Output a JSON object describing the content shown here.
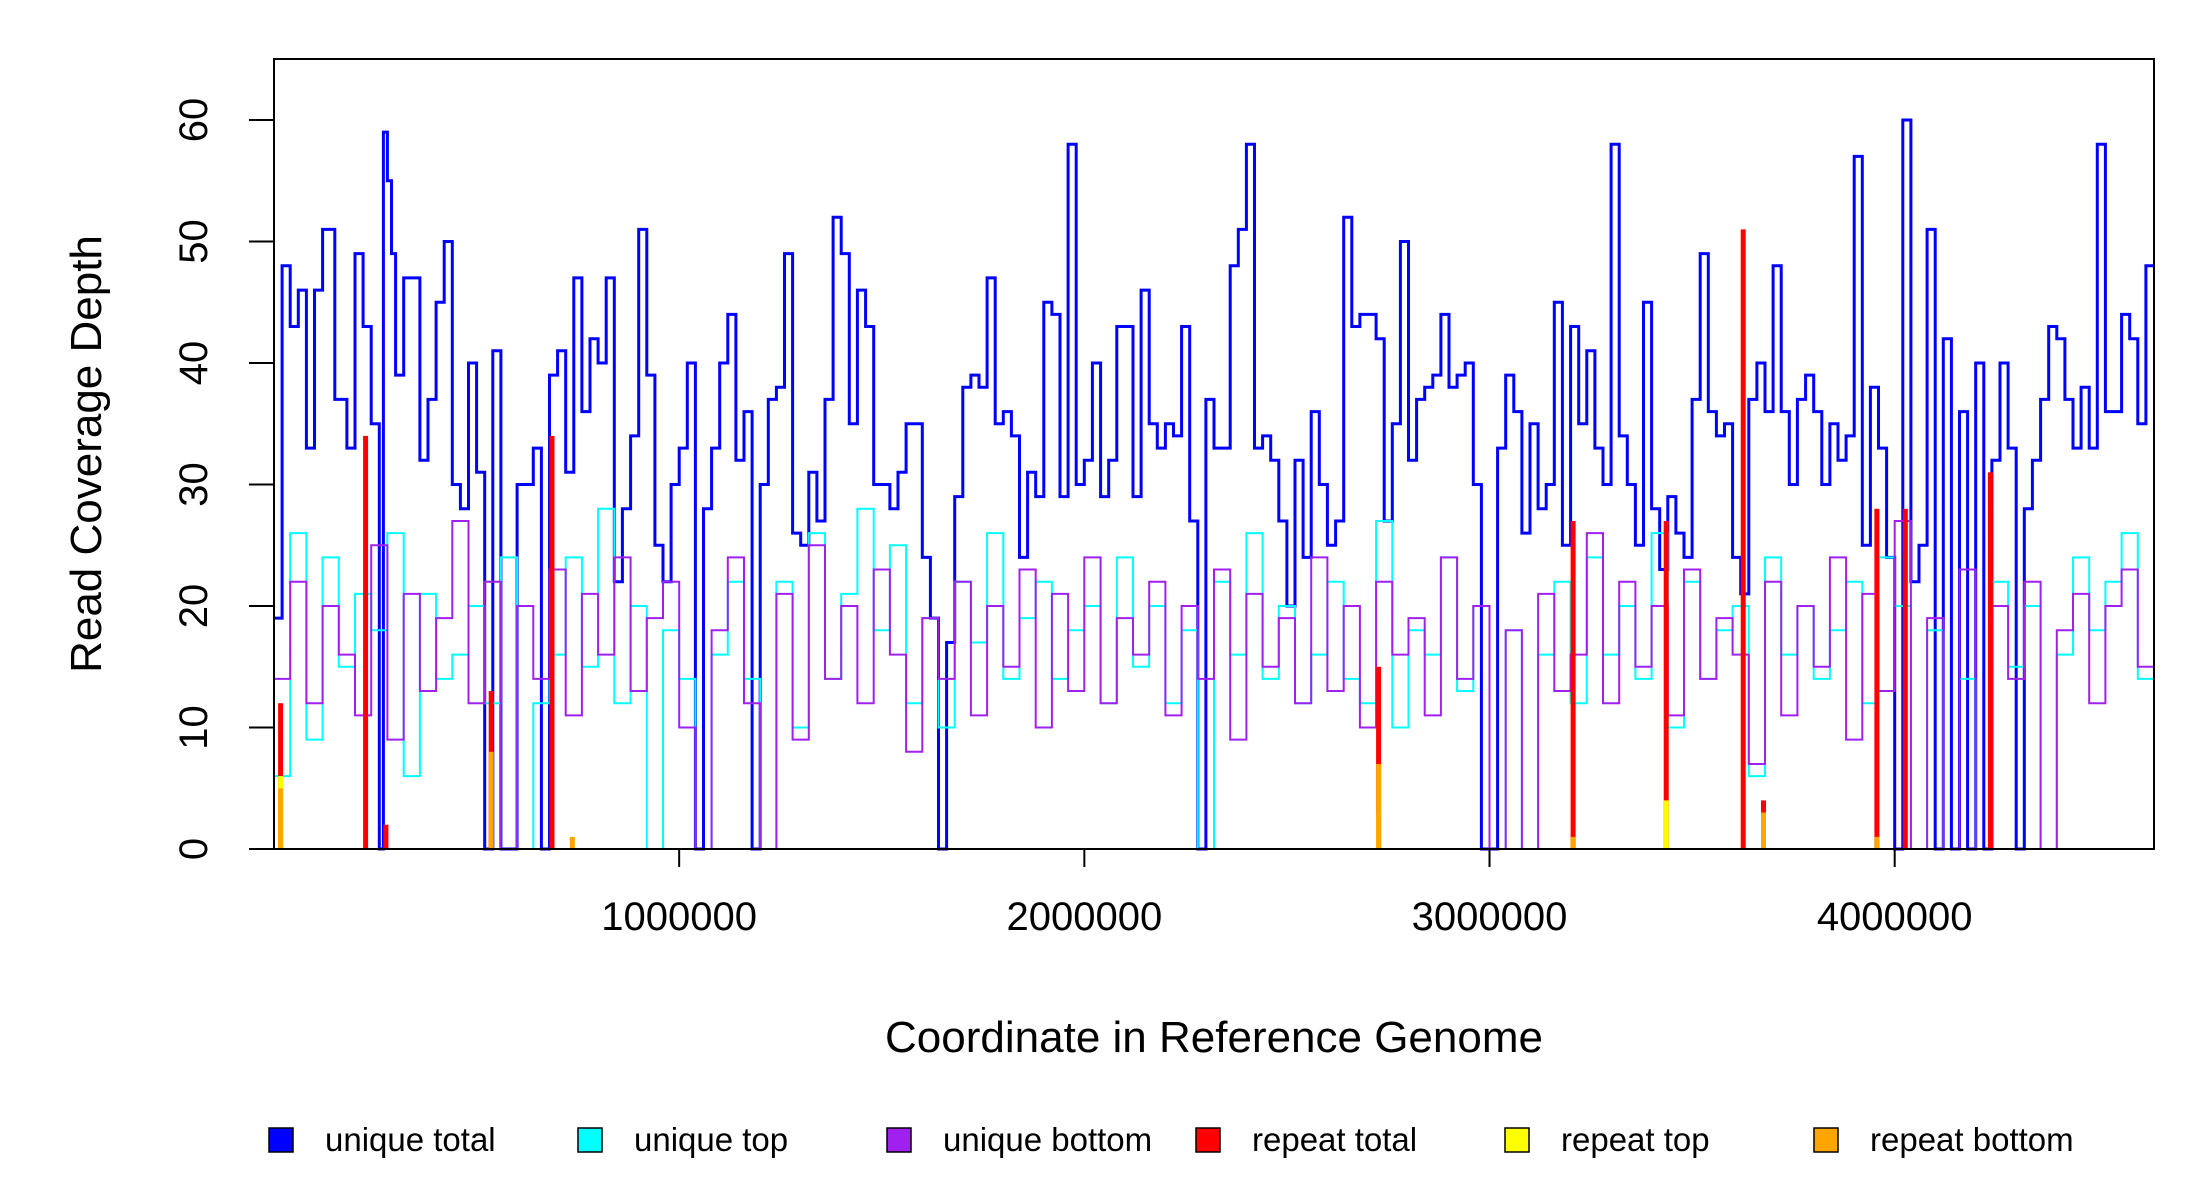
{
  "chart_data": {
    "type": "line",
    "title": "",
    "xlabel": "Coordinate in Reference Genome",
    "ylabel": "Read Coverage Depth",
    "xlim": [
      0,
      4640000
    ],
    "ylim": [
      0,
      65
    ],
    "x_ticks": [
      1000000,
      2000000,
      3000000,
      4000000
    ],
    "x_tick_labels": [
      "1000000",
      "2000000",
      "3000000",
      "4000000"
    ],
    "y_ticks": [
      0,
      10,
      20,
      30,
      40,
      50,
      60
    ],
    "y_tick_labels": [
      "0",
      "10",
      "20",
      "30",
      "40",
      "50",
      "60"
    ],
    "grid": false,
    "legend_position": "bottom",
    "bin_width": 10000,
    "series": [
      {
        "name": "unique total",
        "color": "#0000ff",
        "x": [
          0,
          20000,
          40000,
          60000,
          80000,
          100000,
          120000,
          150000,
          180000,
          200000,
          220000,
          240000,
          260000,
          270000,
          280000,
          290000,
          300000,
          320000,
          360000,
          380000,
          400000,
          420000,
          440000,
          460000,
          480000,
          500000,
          520000,
          540000,
          560000,
          600000,
          640000,
          660000,
          680000,
          700000,
          720000,
          740000,
          760000,
          780000,
          800000,
          820000,
          840000,
          860000,
          880000,
          900000,
          920000,
          940000,
          960000,
          980000,
          1000000,
          1020000,
          1040000,
          1060000,
          1080000,
          1100000,
          1120000,
          1140000,
          1160000,
          1180000,
          1200000,
          1220000,
          1240000,
          1260000,
          1280000,
          1300000,
          1320000,
          1340000,
          1360000,
          1380000,
          1400000,
          1420000,
          1440000,
          1460000,
          1480000,
          1500000,
          1520000,
          1540000,
          1560000,
          1580000,
          1600000,
          1620000,
          1640000,
          1660000,
          1680000,
          1700000,
          1720000,
          1740000,
          1760000,
          1780000,
          1800000,
          1820000,
          1840000,
          1860000,
          1880000,
          1900000,
          1920000,
          1940000,
          1960000,
          1980000,
          2000000,
          2020000,
          2040000,
          2060000,
          2080000,
          2100000,
          2120000,
          2140000,
          2160000,
          2180000,
          2200000,
          2220000,
          2240000,
          2260000,
          2280000,
          2300000,
          2320000,
          2340000,
          2360000,
          2380000,
          2400000,
          2420000,
          2440000,
          2460000,
          2480000,
          2500000,
          2520000,
          2540000,
          2560000,
          2580000,
          2600000,
          2620000,
          2640000,
          2660000,
          2680000,
          2700000,
          2720000,
          2740000,
          2760000,
          2780000,
          2800000,
          2820000,
          2840000,
          2860000,
          2880000,
          2900000,
          2920000,
          2940000,
          2960000,
          2980000,
          3000000,
          3020000,
          3040000,
          3060000,
          3080000,
          3100000,
          3120000,
          3140000,
          3160000,
          3180000,
          3200000,
          3220000,
          3240000,
          3260000,
          3280000,
          3300000,
          3320000,
          3340000,
          3360000,
          3380000,
          3400000,
          3420000,
          3440000,
          3460000,
          3480000,
          3500000,
          3520000,
          3540000,
          3560000,
          3580000,
          3600000,
          3620000,
          3640000,
          3660000,
          3680000,
          3700000,
          3720000,
          3740000,
          3760000,
          3780000,
          3800000,
          3820000,
          3840000,
          3860000,
          3880000,
          3900000,
          3920000,
          3940000,
          3960000,
          3980000,
          4000000,
          4020000,
          4040000,
          4060000,
          4080000,
          4100000,
          4120000,
          4140000,
          4160000,
          4180000,
          4200000,
          4220000,
          4240000,
          4260000,
          4280000,
          4300000,
          4320000,
          4340000,
          4360000,
          4380000,
          4400000,
          4420000,
          4440000,
          4460000,
          4480000,
          4500000,
          4520000,
          4540000,
          4560000,
          4580000,
          4600000,
          4620000
        ],
        "values": [
          19,
          48,
          43,
          46,
          33,
          46,
          51,
          37,
          33,
          49,
          43,
          35,
          0,
          59,
          55,
          49,
          39,
          47,
          32,
          37,
          45,
          50,
          30,
          28,
          40,
          31,
          0,
          41,
          0,
          30,
          33,
          0,
          39,
          41,
          31,
          47,
          36,
          42,
          40,
          47,
          22,
          28,
          34,
          51,
          39,
          25,
          22,
          30,
          33,
          40,
          0,
          28,
          33,
          40,
          44,
          32,
          36,
          0,
          30,
          37,
          38,
          49,
          26,
          25,
          31,
          27,
          37,
          52,
          49,
          35,
          46,
          43,
          30,
          30,
          28,
          31,
          35,
          35,
          24,
          19,
          0,
          17,
          29,
          38,
          39,
          38,
          47,
          35,
          36,
          34,
          24,
          31,
          29,
          45,
          44,
          29,
          58,
          30,
          32,
          40,
          29,
          32,
          43,
          43,
          29,
          46,
          35,
          33,
          35,
          34,
          43,
          27,
          0,
          37,
          33,
          33,
          48,
          51,
          58,
          33,
          34,
          32,
          27,
          20,
          32,
          24,
          36,
          30,
          25,
          27,
          52,
          43,
          44,
          44,
          42,
          27,
          35,
          50,
          32,
          37,
          38,
          39,
          44,
          38,
          39,
          40,
          30,
          0,
          0,
          33,
          39,
          36,
          26,
          35,
          28,
          30,
          45,
          25,
          43,
          35,
          41,
          33,
          30,
          58,
          34,
          30,
          25,
          45,
          28,
          23,
          29,
          26,
          24,
          37,
          49,
          36,
          34,
          35,
          24,
          21,
          37,
          40,
          36,
          48,
          36,
          30,
          37,
          39,
          36,
          30,
          35,
          32,
          34,
          57,
          25,
          38,
          33,
          24,
          0,
          60,
          22,
          25,
          51,
          0,
          42,
          0,
          36,
          0,
          40,
          0,
          32,
          40,
          33,
          0,
          28,
          32,
          37,
          43,
          42,
          37,
          33,
          38,
          33,
          58,
          36,
          36,
          44,
          42,
          35,
          48
        ]
      },
      {
        "name": "unique top",
        "color": "#00ffff",
        "x": [
          0,
          40000,
          80000,
          120000,
          160000,
          200000,
          240000,
          280000,
          320000,
          360000,
          400000,
          440000,
          480000,
          520000,
          560000,
          600000,
          640000,
          680000,
          720000,
          760000,
          800000,
          840000,
          880000,
          920000,
          960000,
          1000000,
          1040000,
          1080000,
          1120000,
          1160000,
          1200000,
          1240000,
          1280000,
          1320000,
          1360000,
          1400000,
          1440000,
          1480000,
          1520000,
          1560000,
          1600000,
          1640000,
          1680000,
          1720000,
          1760000,
          1800000,
          1840000,
          1880000,
          1920000,
          1960000,
          2000000,
          2040000,
          2080000,
          2120000,
          2160000,
          2200000,
          2240000,
          2280000,
          2320000,
          2360000,
          2400000,
          2440000,
          2480000,
          2520000,
          2560000,
          2600000,
          2640000,
          2680000,
          2720000,
          2760000,
          2800000,
          2840000,
          2880000,
          2920000,
          2960000,
          3000000,
          3040000,
          3080000,
          3120000,
          3160000,
          3200000,
          3240000,
          3280000,
          3320000,
          3360000,
          3400000,
          3440000,
          3480000,
          3520000,
          3560000,
          3600000,
          3640000,
          3680000,
          3720000,
          3760000,
          3800000,
          3840000,
          3880000,
          3920000,
          3960000,
          4000000,
          4040000,
          4080000,
          4120000,
          4160000,
          4200000,
          4240000,
          4280000,
          4320000,
          4360000,
          4400000,
          4440000,
          4480000,
          4520000,
          4560000,
          4600000
        ],
        "values": [
          6,
          26,
          9,
          24,
          15,
          21,
          18,
          26,
          6,
          21,
          14,
          16,
          20,
          12,
          24,
          0,
          12,
          16,
          24,
          15,
          28,
          12,
          20,
          0,
          18,
          14,
          0,
          16,
          22,
          14,
          0,
          22,
          10,
          26,
          14,
          21,
          28,
          18,
          25,
          12,
          19,
          10,
          22,
          17,
          26,
          14,
          19,
          22,
          14,
          18,
          20,
          12,
          24,
          15,
          20,
          12,
          18,
          0,
          22,
          16,
          26,
          14,
          20,
          12,
          16,
          22,
          14,
          12,
          27,
          10,
          18,
          16,
          24,
          13,
          20,
          0,
          18,
          0,
          16,
          22,
          12,
          24,
          16,
          20,
          14,
          26,
          10,
          22,
          14,
          18,
          20,
          6,
          24,
          16,
          20,
          14,
          18,
          22,
          12,
          24,
          20,
          0,
          18,
          0,
          14,
          0,
          22,
          15,
          20,
          0,
          16,
          24,
          18,
          22,
          26,
          14
        ]
      },
      {
        "name": "unique bottom",
        "color": "#a020f0",
        "x": [
          0,
          40000,
          80000,
          120000,
          160000,
          200000,
          240000,
          280000,
          320000,
          360000,
          400000,
          440000,
          480000,
          520000,
          560000,
          600000,
          640000,
          680000,
          720000,
          760000,
          800000,
          840000,
          880000,
          920000,
          960000,
          1000000,
          1040000,
          1080000,
          1120000,
          1160000,
          1200000,
          1240000,
          1280000,
          1320000,
          1360000,
          1400000,
          1440000,
          1480000,
          1520000,
          1560000,
          1600000,
          1640000,
          1680000,
          1720000,
          1760000,
          1800000,
          1840000,
          1880000,
          1920000,
          1960000,
          2000000,
          2040000,
          2080000,
          2120000,
          2160000,
          2200000,
          2240000,
          2280000,
          2320000,
          2360000,
          2400000,
          2440000,
          2480000,
          2520000,
          2560000,
          2600000,
          2640000,
          2680000,
          2720000,
          2760000,
          2800000,
          2840000,
          2880000,
          2920000,
          2960000,
          3000000,
          3040000,
          3080000,
          3120000,
          3160000,
          3200000,
          3240000,
          3280000,
          3320000,
          3360000,
          3400000,
          3440000,
          3480000,
          3520000,
          3560000,
          3600000,
          3640000,
          3680000,
          3720000,
          3760000,
          3800000,
          3840000,
          3880000,
          3920000,
          3960000,
          4000000,
          4040000,
          4080000,
          4120000,
          4160000,
          4200000,
          4240000,
          4280000,
          4320000,
          4360000,
          4400000,
          4440000,
          4480000,
          4520000,
          4560000,
          4600000
        ],
        "values": [
          14,
          22,
          12,
          20,
          16,
          11,
          25,
          9,
          21,
          13,
          19,
          27,
          12,
          22,
          0,
          20,
          14,
          23,
          11,
          21,
          16,
          24,
          13,
          19,
          22,
          10,
          0,
          18,
          24,
          12,
          0,
          21,
          9,
          25,
          14,
          20,
          12,
          23,
          16,
          8,
          19,
          14,
          22,
          11,
          20,
          15,
          23,
          10,
          21,
          13,
          24,
          12,
          19,
          16,
          22,
          11,
          20,
          14,
          23,
          9,
          21,
          15,
          19,
          12,
          24,
          13,
          20,
          10,
          22,
          16,
          19,
          11,
          24,
          14,
          20,
          0,
          18,
          0,
          21,
          13,
          16,
          26,
          12,
          22,
          15,
          20,
          11,
          23,
          14,
          19,
          16,
          7,
          22,
          11,
          20,
          15,
          24,
          9,
          21,
          13,
          27,
          0,
          19,
          0,
          23,
          0,
          20,
          14,
          22,
          0,
          18,
          21,
          12,
          20,
          23,
          15
        ]
      },
      {
        "name": "repeat total",
        "color": "#ff0000",
        "x": [
          10000,
          220000,
          270000,
          530000,
          680000,
          2720000,
          3200000,
          3430000,
          3620000,
          3670000,
          3950000,
          4020000,
          4230000
        ],
        "values": [
          12,
          34,
          2,
          13,
          34,
          15,
          27,
          27,
          51,
          4,
          28,
          28,
          31
        ]
      },
      {
        "name": "repeat top",
        "color": "#ffff00",
        "x": [
          10000,
          2720000,
          3430000
        ],
        "values": [
          6,
          3,
          4
        ]
      },
      {
        "name": "repeat bottom",
        "color": "#ffa500",
        "x": [
          10000,
          530000,
          730000,
          2720000,
          3200000,
          3670000,
          3950000
        ],
        "values": [
          5,
          8,
          1,
          7,
          1,
          3,
          1
        ]
      }
    ]
  }
}
